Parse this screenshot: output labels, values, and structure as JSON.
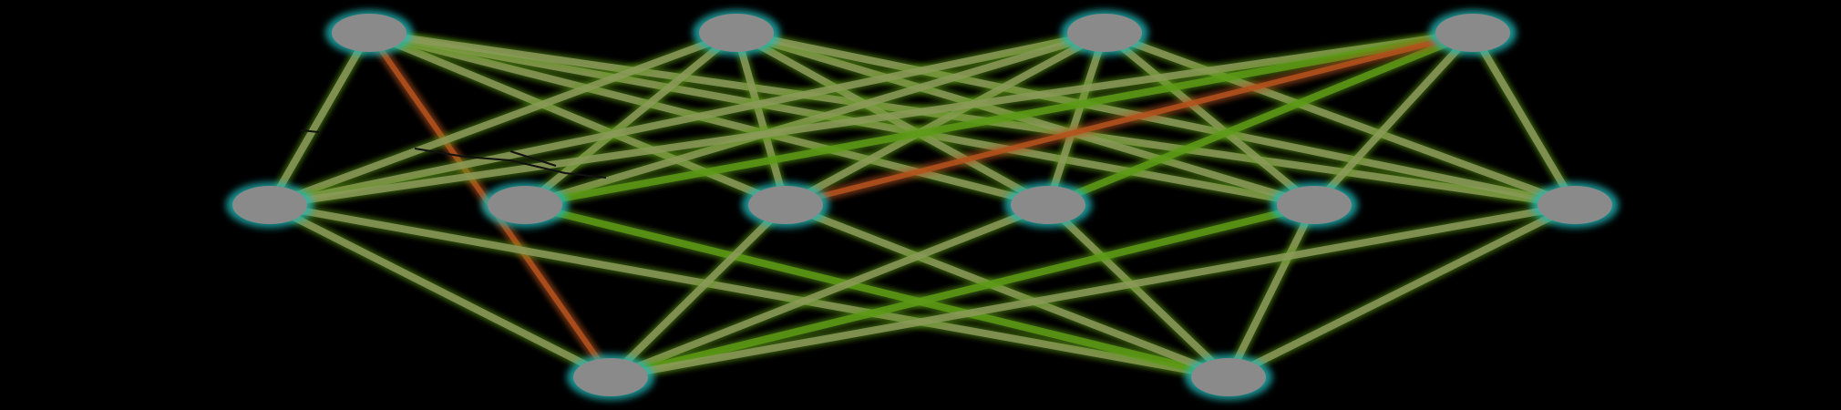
{
  "diagram": {
    "type": "network-graph",
    "layers": [
      {
        "name": "top",
        "nodes": [
          "t1",
          "t2",
          "t3",
          "t4"
        ]
      },
      {
        "name": "middle",
        "nodes": [
          "m1",
          "m2",
          "m3",
          "m4",
          "m5",
          "m6"
        ]
      },
      {
        "name": "bottom",
        "nodes": [
          "b1",
          "b2"
        ]
      }
    ],
    "edges": [
      [
        "t1",
        "m1",
        "olive"
      ],
      [
        "t1",
        "m3",
        "olive"
      ],
      [
        "t1",
        "m4",
        "olive"
      ],
      [
        "t1",
        "m5",
        "olive"
      ],
      [
        "t1",
        "m6",
        "olive"
      ],
      [
        "t1",
        "b1",
        "rust"
      ],
      [
        "t2",
        "m1",
        "olive"
      ],
      [
        "t2",
        "m2",
        "olive"
      ],
      [
        "t2",
        "m3",
        "olive"
      ],
      [
        "t2",
        "m4",
        "olive"
      ],
      [
        "t2",
        "m5",
        "olive"
      ],
      [
        "t2",
        "m6",
        "olive"
      ],
      [
        "t3",
        "m1",
        "olive"
      ],
      [
        "t3",
        "m2",
        "olive"
      ],
      [
        "t3",
        "m3",
        "olive"
      ],
      [
        "t3",
        "m4",
        "olive"
      ],
      [
        "t3",
        "m5",
        "olive"
      ],
      [
        "t3",
        "m6",
        "olive"
      ],
      [
        "t4",
        "m1",
        "olive"
      ],
      [
        "t4",
        "m2",
        "green"
      ],
      [
        "t4",
        "m4",
        "green"
      ],
      [
        "t4",
        "m5",
        "olive"
      ],
      [
        "t4",
        "m6",
        "olive"
      ],
      [
        "t4",
        "m3",
        "rust"
      ],
      [
        "m1",
        "b1",
        "olive"
      ],
      [
        "m1",
        "b2",
        "olive"
      ],
      [
        "m2",
        "b2",
        "green"
      ],
      [
        "m3",
        "b1",
        "olive"
      ],
      [
        "m3",
        "b2",
        "olive"
      ],
      [
        "m4",
        "b1",
        "olive"
      ],
      [
        "m4",
        "b2",
        "olive"
      ],
      [
        "m5",
        "b1",
        "green"
      ],
      [
        "m5",
        "b2",
        "olive"
      ],
      [
        "m6",
        "b1",
        "olive"
      ],
      [
        "m6",
        "b2",
        "olive"
      ]
    ],
    "colors": {
      "background": "#000000",
      "node_fill": "#8a8a8a",
      "node_glow": "#1fb8b8",
      "olive": "#8d9a5c",
      "green": "#5d9a16",
      "rust": "#b4521c"
    }
  }
}
